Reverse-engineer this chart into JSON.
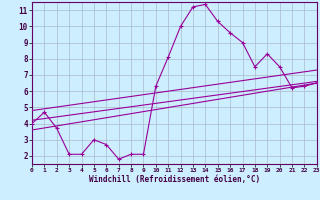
{
  "xlabel": "Windchill (Refroidissement éolien,°C)",
  "bg_color": "#cceeff",
  "grid_color": "#aabbcc",
  "line_color": "#990099",
  "xlim": [
    0,
    23
  ],
  "ylim": [
    1.5,
    11.5
  ],
  "xticks": [
    0,
    1,
    2,
    3,
    4,
    5,
    6,
    7,
    8,
    9,
    10,
    11,
    12,
    13,
    14,
    15,
    16,
    17,
    18,
    19,
    20,
    21,
    22,
    23
  ],
  "yticks": [
    2,
    3,
    4,
    5,
    6,
    7,
    8,
    9,
    10,
    11
  ],
  "line1_x": [
    0,
    1,
    2,
    3,
    4,
    5,
    6,
    7,
    8,
    9,
    10,
    11,
    12,
    13,
    14,
    15,
    16,
    17,
    18,
    19,
    20,
    21,
    22,
    23
  ],
  "line1_y": [
    4.0,
    4.7,
    3.7,
    2.1,
    2.1,
    3.0,
    2.7,
    1.8,
    2.1,
    2.1,
    6.3,
    8.1,
    10.0,
    11.2,
    11.35,
    10.3,
    9.6,
    9.0,
    7.5,
    8.3,
    7.5,
    6.2,
    6.3,
    6.5
  ],
  "line2_x": [
    0,
    23
  ],
  "line2_y": [
    4.8,
    7.3
  ],
  "line3_x": [
    0,
    23
  ],
  "line3_y": [
    4.2,
    6.6
  ],
  "line4_x": [
    0,
    23
  ],
  "line4_y": [
    3.6,
    6.5
  ]
}
